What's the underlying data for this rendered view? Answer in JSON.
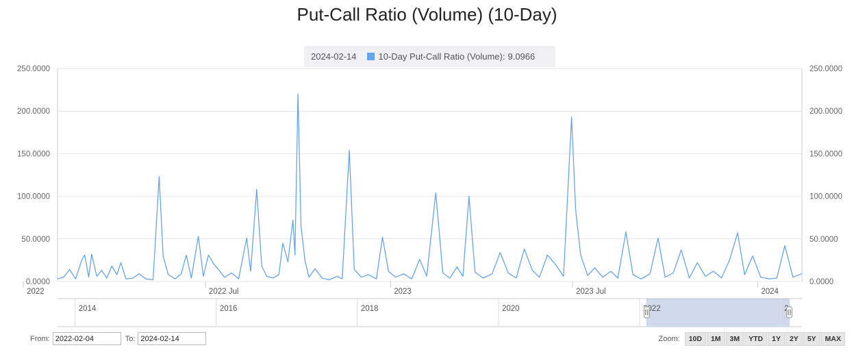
{
  "page": {
    "title": "Put-Call Ratio (Volume) (10-Day)"
  },
  "tooltip": {
    "date": "2024-02-14",
    "series": "10-Day Put-Call Ratio (Volume)",
    "value": "9.0966",
    "color": "#64a4ee"
  },
  "chart_data": {
    "type": "line",
    "title": "Put-Call Ratio (Volume) (10-Day)",
    "xlabel": "",
    "ylabel": "",
    "ylim": [
      0,
      250
    ],
    "grid": true,
    "y_ticks": [
      "0.0000",
      "50.0000",
      "100.0000",
      "150.0000",
      "200.0000",
      "250.0000"
    ],
    "x_ticks": [
      "2022",
      "2022 Jul",
      "2023",
      "2023 Jul",
      "2024"
    ],
    "x_tick_dates": [
      "2022-01-01",
      "2022-07-01",
      "2023-01-01",
      "2023-07-01",
      "2024-01-01"
    ],
    "x_range": [
      "2022-02-04",
      "2024-02-14"
    ],
    "series": [
      {
        "name": "10-Day Put-Call Ratio (Volume)",
        "color": "#64a4ee",
        "points": [
          [
            "2022-02-04",
            3
          ],
          [
            "2022-02-10",
            5
          ],
          [
            "2022-02-16",
            14
          ],
          [
            "2022-02-22",
            3
          ],
          [
            "2022-02-28",
            25
          ],
          [
            "2022-03-03",
            31
          ],
          [
            "2022-03-07",
            5
          ],
          [
            "2022-03-10",
            32
          ],
          [
            "2022-03-15",
            6
          ],
          [
            "2022-03-20",
            13
          ],
          [
            "2022-03-25",
            4
          ],
          [
            "2022-03-30",
            18
          ],
          [
            "2022-04-04",
            8
          ],
          [
            "2022-04-08",
            22
          ],
          [
            "2022-04-13",
            3
          ],
          [
            "2022-04-20",
            4
          ],
          [
            "2022-04-26",
            9
          ],
          [
            "2022-05-03",
            3
          ],
          [
            "2022-05-10",
            2
          ],
          [
            "2022-05-16",
            123
          ],
          [
            "2022-05-20",
            30
          ],
          [
            "2022-05-25",
            8
          ],
          [
            "2022-06-01",
            3
          ],
          [
            "2022-06-07",
            9
          ],
          [
            "2022-06-12",
            31
          ],
          [
            "2022-06-17",
            4
          ],
          [
            "2022-06-24",
            53
          ],
          [
            "2022-06-29",
            6
          ],
          [
            "2022-07-04",
            31
          ],
          [
            "2022-07-09",
            21
          ],
          [
            "2022-07-14",
            14
          ],
          [
            "2022-07-20",
            5
          ],
          [
            "2022-07-27",
            10
          ],
          [
            "2022-08-03",
            3
          ],
          [
            "2022-08-11",
            51
          ],
          [
            "2022-08-15",
            12
          ],
          [
            "2022-08-21",
            108
          ],
          [
            "2022-08-26",
            18
          ],
          [
            "2022-08-31",
            6
          ],
          [
            "2022-09-06",
            4
          ],
          [
            "2022-09-12",
            8
          ],
          [
            "2022-09-16",
            45
          ],
          [
            "2022-09-21",
            23
          ],
          [
            "2022-09-26",
            72
          ],
          [
            "2022-09-28",
            31
          ],
          [
            "2022-10-01",
            220
          ],
          [
            "2022-10-04",
            65
          ],
          [
            "2022-10-08",
            24
          ],
          [
            "2022-10-12",
            5
          ],
          [
            "2022-10-18",
            15
          ],
          [
            "2022-10-25",
            4
          ],
          [
            "2022-11-01",
            2
          ],
          [
            "2022-11-09",
            6
          ],
          [
            "2022-11-14",
            3
          ],
          [
            "2022-11-21",
            154
          ],
          [
            "2022-11-26",
            14
          ],
          [
            "2022-12-03",
            5
          ],
          [
            "2022-12-10",
            8
          ],
          [
            "2022-12-18",
            3
          ],
          [
            "2022-12-24",
            52
          ],
          [
            "2022-12-30",
            12
          ],
          [
            "2023-01-06",
            5
          ],
          [
            "2023-01-14",
            9
          ],
          [
            "2023-01-22",
            3
          ],
          [
            "2023-01-30",
            26
          ],
          [
            "2023-02-06",
            6
          ],
          [
            "2023-02-15",
            104
          ],
          [
            "2023-02-22",
            10
          ],
          [
            "2023-03-01",
            4
          ],
          [
            "2023-03-08",
            17
          ],
          [
            "2023-03-14",
            6
          ],
          [
            "2023-03-20",
            100
          ],
          [
            "2023-03-26",
            11
          ],
          [
            "2023-04-03",
            4
          ],
          [
            "2023-04-12",
            9
          ],
          [
            "2023-04-20",
            34
          ],
          [
            "2023-04-28",
            10
          ],
          [
            "2023-05-06",
            4
          ],
          [
            "2023-05-14",
            38
          ],
          [
            "2023-05-22",
            13
          ],
          [
            "2023-05-29",
            5
          ],
          [
            "2023-06-06",
            31
          ],
          [
            "2023-06-14",
            20
          ],
          [
            "2023-06-22",
            6
          ],
          [
            "2023-06-30",
            193
          ],
          [
            "2023-07-04",
            85
          ],
          [
            "2023-07-09",
            31
          ],
          [
            "2023-07-16",
            7
          ],
          [
            "2023-07-23",
            16
          ],
          [
            "2023-07-31",
            5
          ],
          [
            "2023-08-08",
            12
          ],
          [
            "2023-08-15",
            4
          ],
          [
            "2023-08-23",
            58
          ],
          [
            "2023-08-30",
            8
          ],
          [
            "2023-09-07",
            3
          ],
          [
            "2023-09-16",
            9
          ],
          [
            "2023-09-24",
            51
          ],
          [
            "2023-10-01",
            5
          ],
          [
            "2023-10-09",
            10
          ],
          [
            "2023-10-17",
            37
          ],
          [
            "2023-10-25",
            4
          ],
          [
            "2023-11-02",
            22
          ],
          [
            "2023-11-10",
            6
          ],
          [
            "2023-11-18",
            12
          ],
          [
            "2023-11-26",
            4
          ],
          [
            "2023-12-04",
            25
          ],
          [
            "2023-12-12",
            57
          ],
          [
            "2023-12-19",
            8
          ],
          [
            "2023-12-27",
            30
          ],
          [
            "2024-01-04",
            5
          ],
          [
            "2024-01-12",
            3
          ],
          [
            "2024-01-20",
            4
          ],
          [
            "2024-01-28",
            42
          ],
          [
            "2024-02-05",
            5
          ],
          [
            "2024-02-14",
            9.0966
          ]
        ]
      }
    ]
  },
  "navigator": {
    "labels": [
      "2014",
      "2016",
      "2018",
      "2020",
      "2022",
      "2"
    ],
    "label_years": [
      2014,
      2016,
      2018,
      2020,
      2022,
      2024
    ],
    "range_years": [
      2013.75,
      2024.3
    ],
    "selected_years": [
      2022.1,
      2024.12
    ]
  },
  "range_inputs": {
    "from_label": "From:",
    "from_value": "2022-02-04",
    "to_label": "To:",
    "to_value": "2024-02-14"
  },
  "zoom": {
    "label": "Zoom:",
    "buttons": [
      "10D",
      "1M",
      "3M",
      "YTD",
      "1Y",
      "2Y",
      "5Y",
      "MAX"
    ]
  }
}
